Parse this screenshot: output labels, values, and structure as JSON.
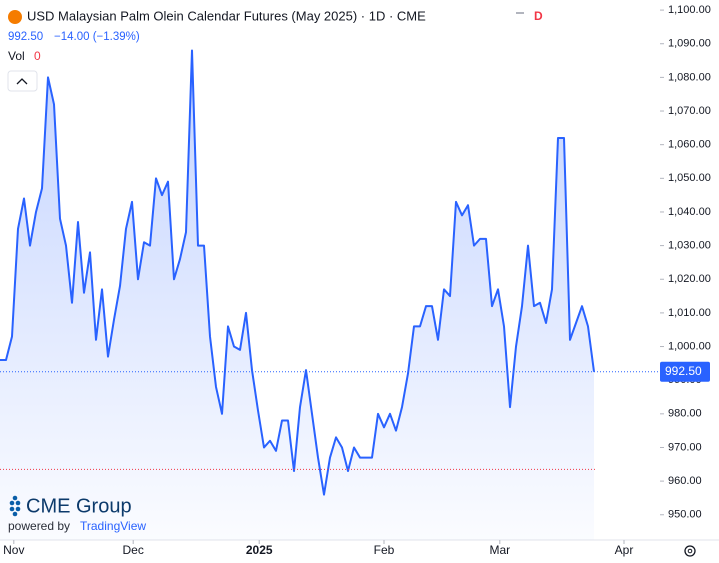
{
  "chart_data": {
    "type": "line",
    "title": "USD Malaysian Palm Olein Calendar Futures (May 2025) · 1D · CME",
    "last_price": "992.50",
    "change": "−14.00 (−1.39%)",
    "interval_badge": "D",
    "volume_label": "Vol",
    "volume_value": "0",
    "brand": "CME Group",
    "powered_by": "powered by",
    "platform": "TradingView",
    "series": [
      {
        "name": "USD Malaysian Palm Olein Calendar Futures",
        "color": "#2962ff",
        "values": [
          996,
          996,
          1003,
          1035,
          1044,
          1030,
          1040,
          1047,
          1080,
          1072,
          1038,
          1030,
          1013,
          1037,
          1016,
          1028,
          1002,
          1017,
          997,
          1008,
          1018,
          1035,
          1043,
          1020,
          1031,
          1030,
          1050,
          1045,
          1049,
          1020,
          1026,
          1034,
          1088,
          1030,
          1030,
          1003,
          988,
          980,
          1006,
          1000,
          999,
          1010,
          993,
          981,
          970,
          972,
          969,
          978,
          978,
          963,
          982,
          993,
          980,
          967,
          956,
          967,
          973,
          970,
          963,
          970,
          967,
          967,
          967,
          980,
          976,
          980,
          975,
          982,
          992,
          1006,
          1006,
          1012,
          1012,
          1002,
          1017,
          1015,
          1043,
          1039,
          1042,
          1030,
          1032,
          1032,
          1012,
          1017,
          1006,
          982,
          1000,
          1012,
          1030,
          1012,
          1013,
          1007,
          1017,
          1062,
          1062,
          1002,
          1007,
          1012,
          1006,
          992.5
        ]
      }
    ],
    "last_value": 992.5,
    "last_value_label": "992.50",
    "reference_line": 963.5,
    "xlim": [
      0,
      110
    ],
    "xticks": [
      {
        "value": 2.3,
        "label": "Nov"
      },
      {
        "value": 22.2,
        "label": "Dec"
      },
      {
        "value": 43.2,
        "label": "2025"
      },
      {
        "value": 64,
        "label": "Feb"
      },
      {
        "value": 83.3,
        "label": "Mar"
      },
      {
        "value": 104,
        "label": "Apr"
      }
    ],
    "ylim": [
      942.5,
      1103
    ],
    "yticks": [
      {
        "value": 950,
        "label": "950.00"
      },
      {
        "value": 960,
        "label": "960.00"
      },
      {
        "value": 970,
        "label": "970.00"
      },
      {
        "value": 980,
        "label": "980.00"
      },
      {
        "value": 990,
        "label": "990.00"
      },
      {
        "value": 1000,
        "label": "1,000.00"
      },
      {
        "value": 1010,
        "label": "1,010.00"
      },
      {
        "value": 1020,
        "label": "1,020.00"
      },
      {
        "value": 1030,
        "label": "1,030.00"
      },
      {
        "value": 1040,
        "label": "1,040.00"
      },
      {
        "value": 1050,
        "label": "1,050.00"
      },
      {
        "value": 1060,
        "label": "1,060.00"
      },
      {
        "value": 1070,
        "label": "1,070.00"
      },
      {
        "value": 1080,
        "label": "1,080.00"
      },
      {
        "value": 1090,
        "label": "1,090.00"
      },
      {
        "value": 1100,
        "label": "1,100.00"
      }
    ]
  }
}
